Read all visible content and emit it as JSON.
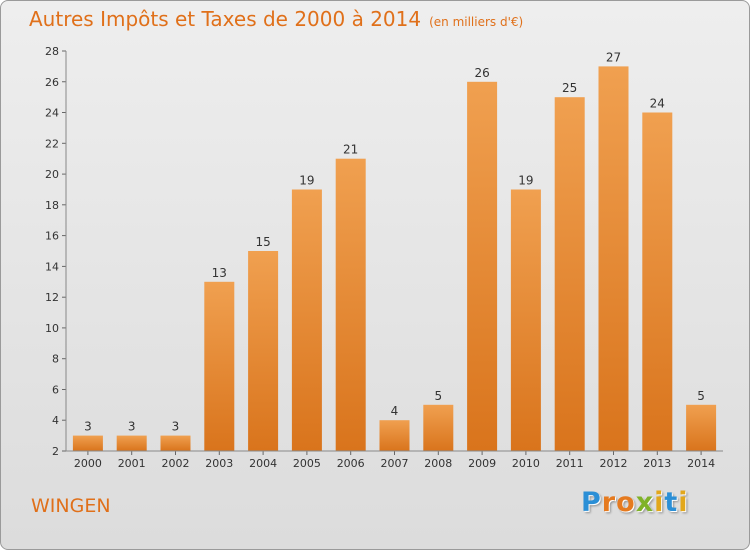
{
  "chart_data": {
    "type": "bar",
    "title": "Autres Impôts et Taxes de 2000 à 2014",
    "subtitle": "(en milliers d'€)",
    "categories": [
      "2000",
      "2001",
      "2002",
      "2003",
      "2004",
      "2005",
      "2006",
      "2007",
      "2008",
      "2009",
      "2010",
      "2011",
      "2012",
      "2013",
      "2014"
    ],
    "values": [
      3,
      3,
      3,
      13,
      15,
      19,
      21,
      4,
      5,
      26,
      19,
      25,
      27,
      24,
      5
    ],
    "ylim": [
      2,
      28
    ],
    "yticks": [
      2,
      4,
      6,
      8,
      10,
      12,
      14,
      16,
      18,
      20,
      22,
      24,
      26,
      28
    ],
    "grid": false,
    "legend": "none",
    "bar_color": "#f0a050",
    "bar_color_dark": "#d9741c"
  },
  "place": "WINGEN",
  "logo": {
    "text": "Proxiti",
    "colors": [
      "#2b8fd6",
      "#e57a1f",
      "#7fb228",
      "#e2a71b"
    ]
  }
}
